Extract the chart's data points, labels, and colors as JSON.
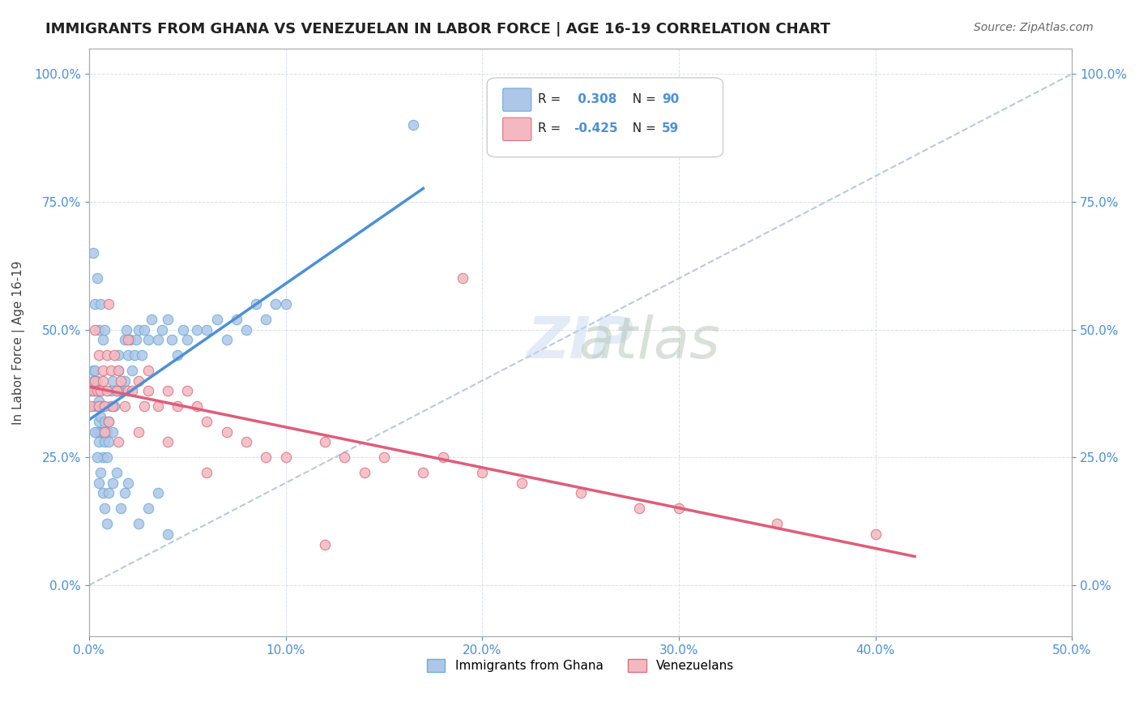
{
  "title": "IMMIGRANTS FROM GHANA VS VENEZUELAN IN LABOR FORCE | AGE 16-19 CORRELATION CHART",
  "source": "Source: ZipAtlas.com",
  "xlabel": "",
  "ylabel": "In Labor Force | Age 16-19",
  "xlim": [
    0.0,
    0.5
  ],
  "ylim": [
    -0.1,
    1.05
  ],
  "xticks": [
    0.0,
    0.1,
    0.2,
    0.3,
    0.4,
    0.5
  ],
  "xticklabels": [
    "0.0%",
    "10.0%",
    "20.0%",
    "30.0%",
    "40.0%",
    "50.0%"
  ],
  "yticks": [
    0.0,
    0.25,
    0.5,
    0.75,
    1.0
  ],
  "yticklabels": [
    "0.0%",
    "25.0%",
    "50.0%",
    "75.0%",
    "100.0%"
  ],
  "ghana_color": "#aec6e8",
  "ghana_edge": "#6baed6",
  "venezuela_color": "#f4b8c1",
  "venezuela_edge": "#d6737f",
  "trend_ghana_color": "#4a90d9",
  "trend_venezuela_color": "#e05c7a",
  "diag_color": "#b0c4de",
  "R_ghana": 0.308,
  "N_ghana": 90,
  "R_venezuela": -0.425,
  "N_venezuela": 59,
  "watermark": "ZIPatlas",
  "legend_labels": [
    "Immigrants from Ghana",
    "Venezuelans"
  ],
  "ghana_points_x": [
    0.001,
    0.002,
    0.002,
    0.003,
    0.003,
    0.003,
    0.004,
    0.004,
    0.004,
    0.004,
    0.005,
    0.005,
    0.005,
    0.006,
    0.006,
    0.006,
    0.007,
    0.007,
    0.007,
    0.008,
    0.008,
    0.009,
    0.009,
    0.01,
    0.01,
    0.011,
    0.011,
    0.012,
    0.012,
    0.013,
    0.014,
    0.015,
    0.015,
    0.016,
    0.018,
    0.018,
    0.019,
    0.02,
    0.021,
    0.022,
    0.023,
    0.024,
    0.025,
    0.027,
    0.028,
    0.03,
    0.032,
    0.035,
    0.037,
    0.04,
    0.042,
    0.045,
    0.048,
    0.05,
    0.055,
    0.06,
    0.065,
    0.07,
    0.075,
    0.08,
    0.085,
    0.09,
    0.095,
    0.1,
    0.002,
    0.003,
    0.004,
    0.005,
    0.006,
    0.007,
    0.008,
    0.003,
    0.004,
    0.005,
    0.006,
    0.007,
    0.008,
    0.009,
    0.01,
    0.012,
    0.014,
    0.016,
    0.018,
    0.02,
    0.025,
    0.03,
    0.035,
    0.04,
    0.015,
    0.165
  ],
  "ghana_points_y": [
    0.38,
    0.4,
    0.42,
    0.35,
    0.38,
    0.42,
    0.3,
    0.35,
    0.38,
    0.4,
    0.28,
    0.32,
    0.36,
    0.3,
    0.33,
    0.38,
    0.25,
    0.3,
    0.35,
    0.28,
    0.32,
    0.25,
    0.3,
    0.28,
    0.32,
    0.35,
    0.38,
    0.3,
    0.4,
    0.35,
    0.38,
    0.42,
    0.45,
    0.38,
    0.4,
    0.48,
    0.5,
    0.45,
    0.48,
    0.42,
    0.45,
    0.48,
    0.5,
    0.45,
    0.5,
    0.48,
    0.52,
    0.48,
    0.5,
    0.52,
    0.48,
    0.45,
    0.5,
    0.48,
    0.5,
    0.5,
    0.52,
    0.48,
    0.52,
    0.5,
    0.55,
    0.52,
    0.55,
    0.55,
    0.65,
    0.55,
    0.6,
    0.5,
    0.55,
    0.48,
    0.5,
    0.3,
    0.25,
    0.2,
    0.22,
    0.18,
    0.15,
    0.12,
    0.18,
    0.2,
    0.22,
    0.15,
    0.18,
    0.2,
    0.12,
    0.15,
    0.18,
    0.1,
    0.38,
    0.9
  ],
  "venezuela_points_x": [
    0.001,
    0.002,
    0.003,
    0.004,
    0.005,
    0.006,
    0.007,
    0.008,
    0.009,
    0.01,
    0.012,
    0.014,
    0.016,
    0.018,
    0.02,
    0.022,
    0.025,
    0.028,
    0.03,
    0.035,
    0.04,
    0.045,
    0.05,
    0.055,
    0.06,
    0.07,
    0.08,
    0.09,
    0.1,
    0.12,
    0.13,
    0.14,
    0.15,
    0.17,
    0.18,
    0.2,
    0.22,
    0.25,
    0.28,
    0.3,
    0.35,
    0.4,
    0.003,
    0.005,
    0.007,
    0.009,
    0.011,
    0.013,
    0.015,
    0.01,
    0.02,
    0.03,
    0.008,
    0.015,
    0.025,
    0.04,
    0.06,
    0.12,
    0.19
  ],
  "venezuela_points_y": [
    0.35,
    0.38,
    0.4,
    0.38,
    0.35,
    0.38,
    0.4,
    0.35,
    0.38,
    0.32,
    0.35,
    0.38,
    0.4,
    0.35,
    0.38,
    0.38,
    0.4,
    0.35,
    0.38,
    0.35,
    0.38,
    0.35,
    0.38,
    0.35,
    0.32,
    0.3,
    0.28,
    0.25,
    0.25,
    0.28,
    0.25,
    0.22,
    0.25,
    0.22,
    0.25,
    0.22,
    0.2,
    0.18,
    0.15,
    0.15,
    0.12,
    0.1,
    0.5,
    0.45,
    0.42,
    0.45,
    0.42,
    0.45,
    0.42,
    0.55,
    0.48,
    0.42,
    0.3,
    0.28,
    0.3,
    0.28,
    0.22,
    0.08,
    0.6
  ]
}
